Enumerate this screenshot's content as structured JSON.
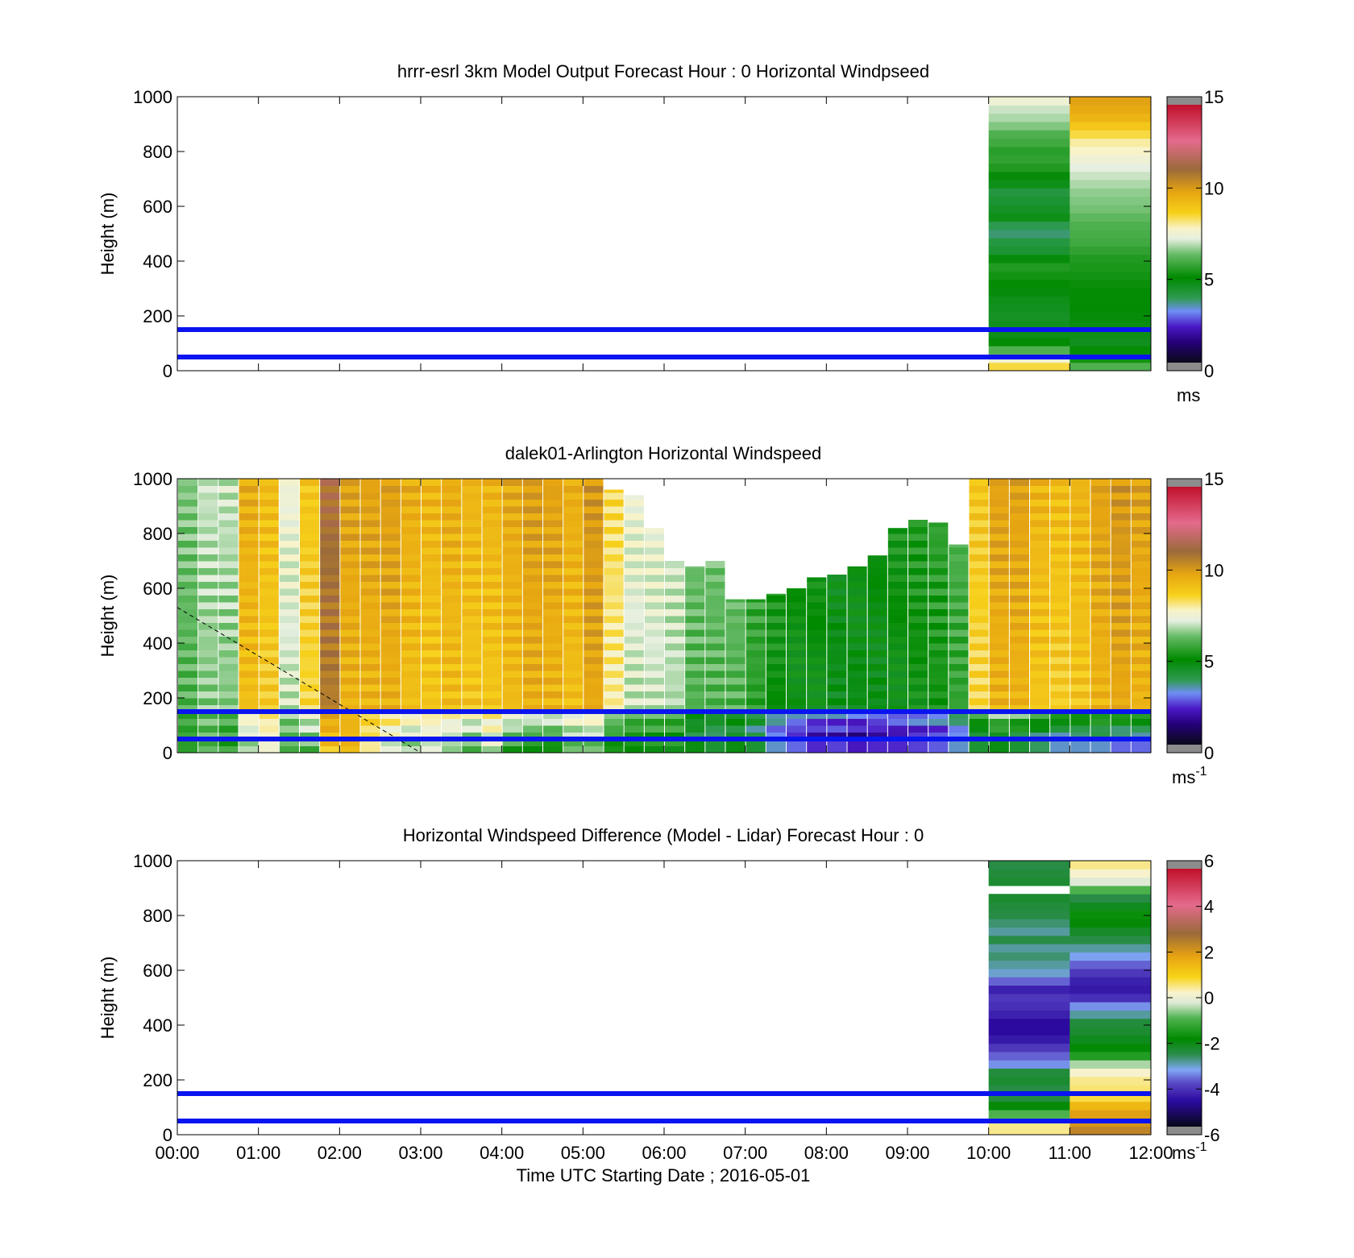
{
  "chart_data": [
    {
      "type": "heatmap",
      "title": "hrrr-esrl 3km Model Output   Forecast Hour : 0 Horizontal Windpseed",
      "ylabel": "Height (m)",
      "xlabel": "",
      "xlim": [
        0,
        12
      ],
      "ylim": [
        0,
        1000
      ],
      "yticks": [
        "0",
        "200",
        "400",
        "600",
        "800",
        "1000"
      ],
      "colorbar": {
        "min": 0,
        "max": 15,
        "ticks": [
          "0",
          "5",
          "10",
          "15"
        ],
        "unit": "ms",
        "unit_sup": ""
      },
      "scale": "speed",
      "reference_lines_m": [
        50,
        150
      ],
      "columns": [
        {
          "t0": 10,
          "t1": 11,
          "y0": 0,
          "y1": 1000,
          "values": [
            8.5,
            7.5,
            6,
            5,
            4.6,
            4.5,
            4.4,
            4.5,
            4.6,
            4.8,
            5,
            5.2,
            5.4,
            4.8,
            4.2,
            4,
            3.6,
            3.8,
            4.6,
            4.4,
            4.2,
            4,
            4.6,
            4.8,
            5.4,
            5.6,
            5.5,
            5.8,
            6,
            6.5,
            6.8,
            7,
            7.5
          ]
        },
        {
          "t0": 11,
          "t1": 12,
          "y0": 0,
          "y1": 1000,
          "values": [
            6,
            5.2,
            5,
            4.5,
            4.6,
            4.7,
            4.8,
            4.9,
            5,
            5,
            5.1,
            5.2,
            5.3,
            5.4,
            5.6,
            5.8,
            5.9,
            6.0,
            6.2,
            6.4,
            6.5,
            6.6,
            6.8,
            7,
            7.2,
            7.5,
            7.8,
            8,
            8.5,
            9,
            9.5,
            9.8,
            10
          ]
        }
      ]
    },
    {
      "type": "heatmap",
      "title": "dalek01-Arlington  Horizontal Windspeed",
      "ylabel": "Height (m)",
      "xlabel": "",
      "xlim": [
        0,
        12
      ],
      "ylim": [
        0,
        1000
      ],
      "yticks": [
        "0",
        "200",
        "400",
        "600",
        "800",
        "1000"
      ],
      "colorbar": {
        "min": 0,
        "max": 15,
        "ticks": [
          "0",
          "5",
          "10",
          "15"
        ],
        "unit": "ms",
        "unit_sup": "-1"
      },
      "scale": "speed",
      "reference_lines_m": [
        50,
        150
      ],
      "dashed_line": {
        "from": [
          0.0,
          530
        ],
        "to": [
          3.0,
          0
        ]
      },
      "column_width_h": 0.25,
      "profiles": [
        {
          "t": 0.0,
          "top": 1000,
          "base": 6.0,
          "low": 5.5
        },
        {
          "t": 0.25,
          "top": 1000,
          "base": 6.5,
          "low": 6.0
        },
        {
          "t": 0.5,
          "top": 1000,
          "base": 6.5,
          "low": 5.5
        },
        {
          "t": 0.75,
          "top": 1000,
          "base": 9.2,
          "low": 6.5
        },
        {
          "t": 1.0,
          "top": 1000,
          "base": 8.8,
          "low": 7.5
        },
        {
          "t": 1.25,
          "top": 1000,
          "base": 7.0,
          "low": 6.0
        },
        {
          "t": 1.5,
          "top": 1000,
          "base": 8.5,
          "low": 6.0
        },
        {
          "t": 1.75,
          "top": 1000,
          "base": 10.8,
          "low": 9.0
        },
        {
          "t": 2.0,
          "top": 1000,
          "base": 9.5,
          "low": 9.5
        },
        {
          "t": 2.25,
          "top": 1000,
          "base": 9.5,
          "low": 8.0
        },
        {
          "t": 2.5,
          "top": 1000,
          "base": 9.6,
          "low": 7.0
        },
        {
          "t": 2.75,
          "top": 1000,
          "base": 9.2,
          "low": 6.5
        },
        {
          "t": 3.0,
          "top": 1000,
          "base": 9.0,
          "low": 7.0
        },
        {
          "t": 3.25,
          "top": 1000,
          "base": 9.2,
          "low": 6.5
        },
        {
          "t": 3.5,
          "top": 1000,
          "base": 9.0,
          "low": 6.0
        },
        {
          "t": 3.75,
          "top": 1000,
          "base": 9.0,
          "low": 7.0
        },
        {
          "t": 4.0,
          "top": 1000,
          "base": 9.3,
          "low": 5.5
        },
        {
          "t": 4.25,
          "top": 1000,
          "base": 9.6,
          "low": 5.0
        },
        {
          "t": 4.5,
          "top": 1000,
          "base": 9.5,
          "low": 5.0
        },
        {
          "t": 4.75,
          "top": 1000,
          "base": 9.2,
          "low": 6.0
        },
        {
          "t": 5.0,
          "top": 1000,
          "base": 9.8,
          "low": 6.0
        },
        {
          "t": 5.25,
          "top": 960,
          "base": 8.0,
          "low": 5.0
        },
        {
          "t": 5.5,
          "top": 940,
          "base": 7.0,
          "low": 5.0
        },
        {
          "t": 5.75,
          "top": 820,
          "base": 7.0,
          "low": 5.0
        },
        {
          "t": 6.0,
          "top": 700,
          "base": 6.8,
          "low": 5.0
        },
        {
          "t": 6.25,
          "top": 680,
          "base": 6.0,
          "low": 3.5
        },
        {
          "t": 6.5,
          "top": 700,
          "base": 6.0,
          "low": 3.0
        },
        {
          "t": 6.75,
          "top": 560,
          "base": 6.0,
          "low": 3.5
        },
        {
          "t": 7.0,
          "top": 560,
          "base": 5.5,
          "low": 3.0
        },
        {
          "t": 7.25,
          "top": 580,
          "base": 5.0,
          "low": 2.0
        },
        {
          "t": 7.5,
          "top": 600,
          "base": 4.8,
          "low": 1.5
        },
        {
          "t": 7.75,
          "top": 640,
          "base": 4.8,
          "low": 1.0
        },
        {
          "t": 8.0,
          "top": 650,
          "base": 4.5,
          "low": 1.2
        },
        {
          "t": 8.25,
          "top": 680,
          "base": 4.6,
          "low": 0.8
        },
        {
          "t": 8.5,
          "top": 720,
          "base": 4.6,
          "low": 1.0
        },
        {
          "t": 8.75,
          "top": 820,
          "base": 4.8,
          "low": 1.0
        },
        {
          "t": 9.0,
          "top": 850,
          "base": 5.0,
          "low": 1.2
        },
        {
          "t": 9.25,
          "top": 840,
          "base": 5.2,
          "low": 1.4
        },
        {
          "t": 9.5,
          "top": 760,
          "base": 5.6,
          "low": 2.0
        },
        {
          "t": 9.75,
          "top": 1000,
          "base": 8.5,
          "low": 3.0
        },
        {
          "t": 10.0,
          "top": 1000,
          "base": 9.5,
          "low": 3.5
        },
        {
          "t": 10.25,
          "top": 1000,
          "base": 9.5,
          "low": 3.0
        },
        {
          "t": 10.5,
          "top": 1000,
          "base": 9.0,
          "low": 2.5
        },
        {
          "t": 10.75,
          "top": 1000,
          "base": 8.8,
          "low": 2.0
        },
        {
          "t": 11.0,
          "top": 1000,
          "base": 9.0,
          "low": 2.0
        },
        {
          "t": 11.25,
          "top": 1000,
          "base": 9.5,
          "low": 2.0
        },
        {
          "t": 11.5,
          "top": 1000,
          "base": 9.8,
          "low": 1.5
        },
        {
          "t": 11.75,
          "top": 1000,
          "base": 9.5,
          "low": 1.5
        }
      ]
    },
    {
      "type": "heatmap",
      "title": "Horizontal Windspeed Difference (Model - Lidar) Forecast Hour : 0",
      "ylabel": "Height (m)",
      "xlabel": "Time UTC  Starting Date ; 2016-05-01",
      "xlim": [
        0,
        12
      ],
      "ylim": [
        0,
        1000
      ],
      "xticks": [
        "00:00",
        "01:00",
        "02:00",
        "03:00",
        "04:00",
        "05:00",
        "06:00",
        "07:00",
        "08:00",
        "09:00",
        "10:00",
        "11:00",
        "12:00"
      ],
      "yticks": [
        "0",
        "200",
        "400",
        "600",
        "800",
        "1000"
      ],
      "colorbar": {
        "min": -6,
        "max": 6,
        "ticks": [
          "-6",
          "-4",
          "-2",
          "0",
          "2",
          "4",
          "6"
        ],
        "unit": "ms",
        "unit_sup": "-1"
      },
      "scale": "diff",
      "reference_lines_m": [
        50,
        150
      ],
      "columns": [
        {
          "t0": 10,
          "t1": 11,
          "y0": 0,
          "y1": 1000,
          "values": [
            0.5,
            0.5,
            -1,
            -2,
            -2.5,
            -2.6,
            -2.4,
            -2.5,
            -3.5,
            -3.8,
            -4.2,
            -4.6,
            -4.8,
            -4.8,
            -4.5,
            -4.3,
            -4.2,
            -4.5,
            -3.8,
            -3.2,
            -3,
            -2.8,
            -3.0,
            -2.6,
            -3,
            -2.8,
            -2.6,
            -2.5,
            -2.4,
            null,
            -2.4,
            -2.5,
            -2.6
          ]
        },
        {
          "t0": 11,
          "t1": 12,
          "y0": 0,
          "y1": 1000,
          "values": [
            2.5,
            2.2,
            2,
            1.5,
            0.8,
            0.6,
            0.5,
            0.2,
            -0.5,
            -1.5,
            -2.0,
            -2.2,
            -2.4,
            -2.5,
            -3,
            -3.5,
            -4.3,
            -4.6,
            -4.5,
            -4.2,
            -3.8,
            -3.4,
            -3,
            -2.6,
            -2.3,
            -2.0,
            -1.8,
            -2.2,
            -2.6,
            -1,
            -0.2,
            0.2,
            0.5
          ]
        }
      ]
    }
  ]
}
